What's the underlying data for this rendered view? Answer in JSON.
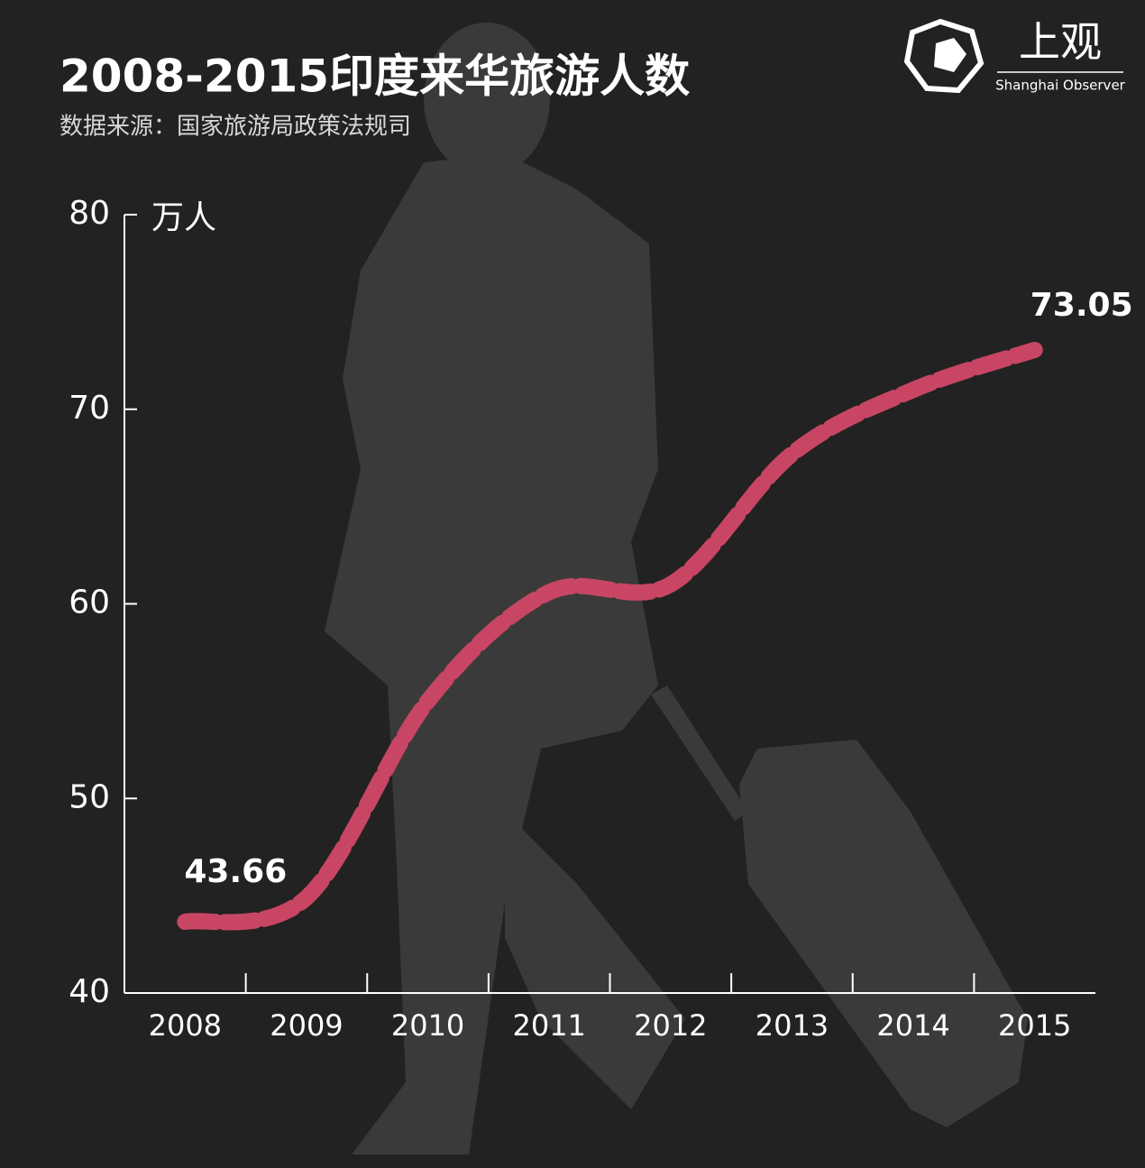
{
  "chart_data": {
    "type": "line",
    "title": "2008-2015印度来华旅游人数",
    "subtitle": "数据来源：国家旅游局政策法规司",
    "y_label": "万人",
    "logo": {
      "name": "上观",
      "subtitle": "Shanghai Observer"
    },
    "categories": [
      "2008",
      "2009",
      "2010",
      "2011",
      "2012",
      "2013",
      "2014",
      "2015"
    ],
    "values": [
      43.66,
      44.9,
      55.0,
      60.6,
      61.0,
      67.7,
      71.0,
      73.05
    ],
    "color": "#c84664",
    "ylim": [
      40,
      80
    ],
    "yticks": [
      40,
      50,
      60,
      70,
      80
    ]
  }
}
